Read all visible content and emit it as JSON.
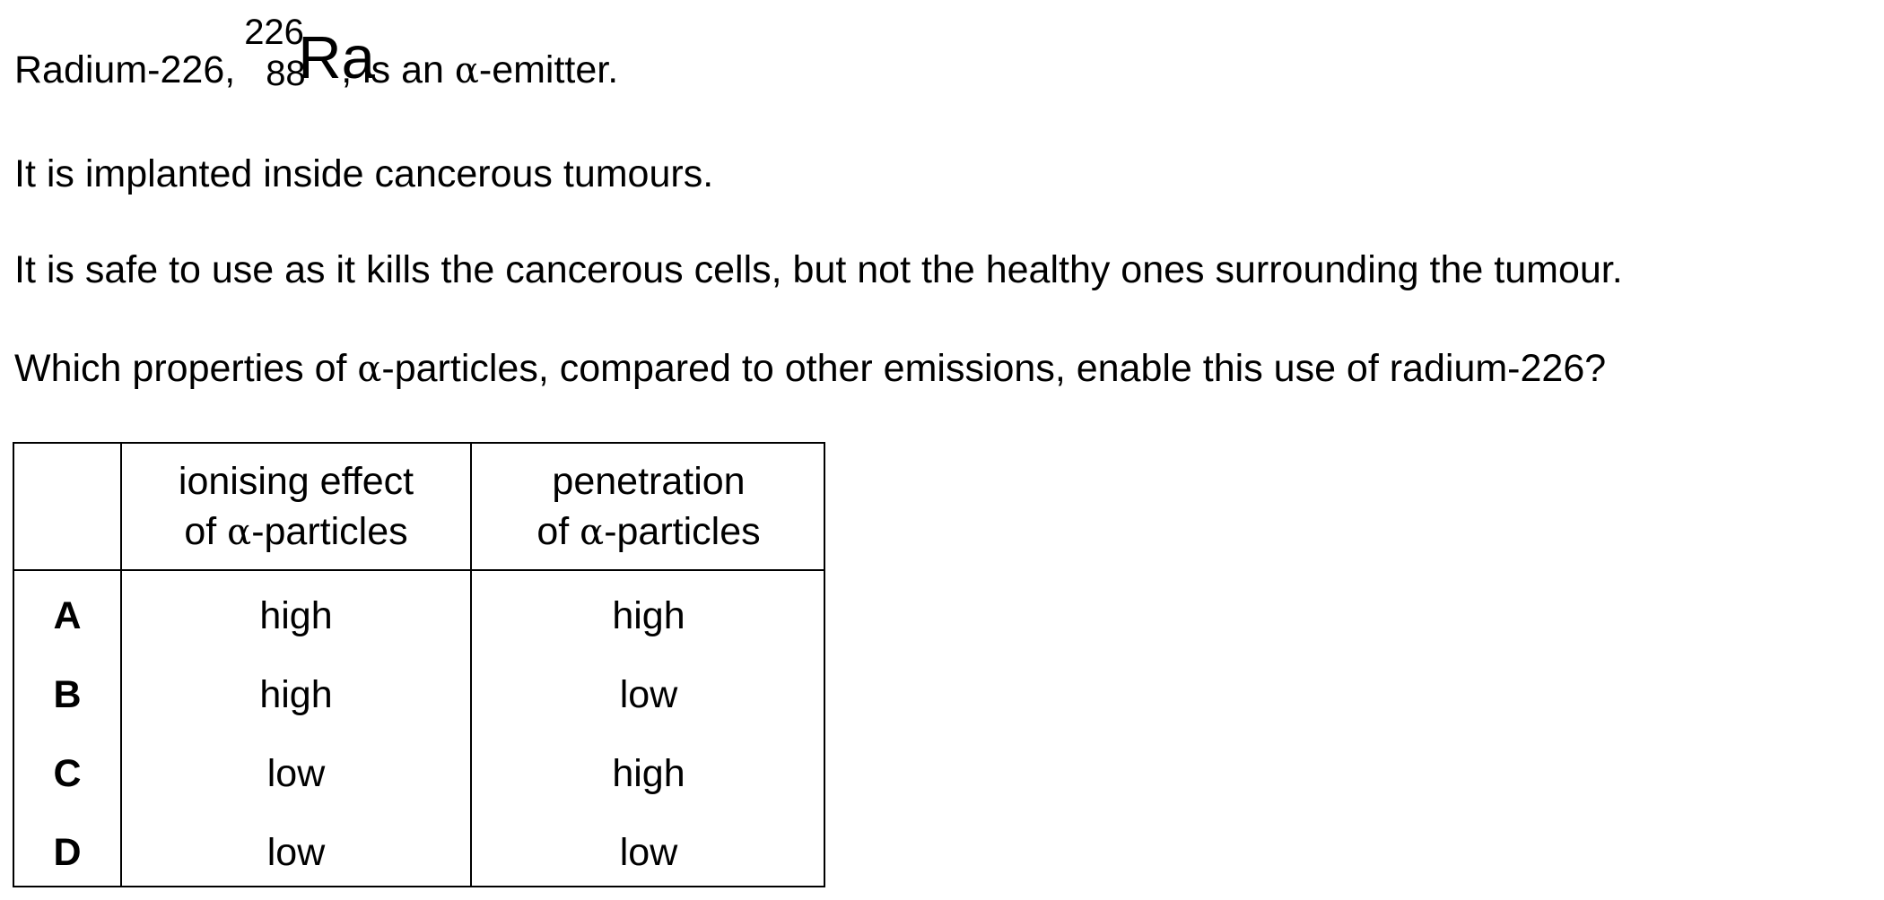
{
  "intro": {
    "line1_prefix": "Radium-226,",
    "nuclide": {
      "mass_number": "226",
      "atomic_number": "88",
      "symbol": "Ra"
    },
    "line1_mid": ", is an ",
    "alpha": "α",
    "line1_suffix": "-emitter.",
    "line2": "It is implanted inside cancerous tumours.",
    "line3": "It is safe to use as it kills the cancerous cells, but not the healthy ones surrounding the tumour.",
    "question_prefix": "Which properties of ",
    "question_suffix": "-particles, compared to other emissions, enable this use of radium-226?"
  },
  "table": {
    "headers": {
      "ionising_line1": "ionising effect",
      "ionising_line2_prefix": "of ",
      "ionising_line2_suffix": "-particles",
      "penetration_line1": "penetration",
      "penetration_line2_prefix": "of ",
      "penetration_line2_suffix": "-particles"
    },
    "rows": [
      {
        "option": "A",
        "ionising": "high",
        "penetration": "high"
      },
      {
        "option": "B",
        "ionising": "high",
        "penetration": "low"
      },
      {
        "option": "C",
        "ionising": "low",
        "penetration": "high"
      },
      {
        "option": "D",
        "ionising": "low",
        "penetration": "low"
      }
    ]
  }
}
